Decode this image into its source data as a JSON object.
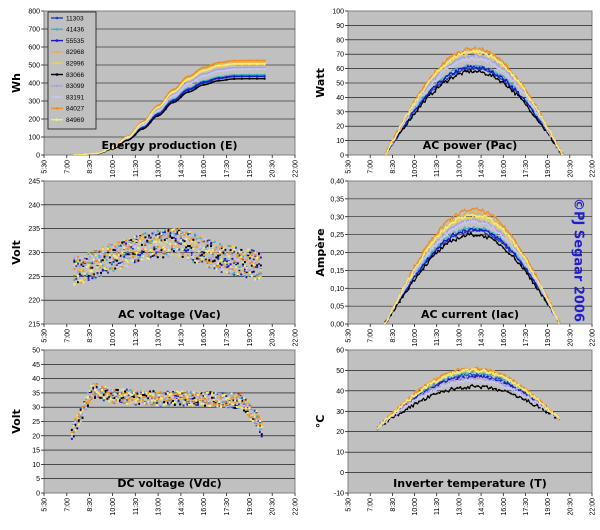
{
  "watermark": "©PJ Segaar 2006",
  "legend": {
    "ids": [
      "11303",
      "41436",
      "55535",
      "82968",
      "82996",
      "83066",
      "83099",
      "83191",
      "84027",
      "84969"
    ],
    "colors": [
      "#1f3fb4",
      "#3cb0c8",
      "#1818c8",
      "#e8b040",
      "#f0d050",
      "#000000",
      "#a8a0e0",
      "#c8c8f0",
      "#f08c20",
      "#f0f080"
    ]
  },
  "chart_data": [
    {
      "type": "line",
      "title": "Energy production (E)",
      "ylabel": "Wh",
      "ylim": [
        0,
        800
      ],
      "yticks": [
        "0",
        "100",
        "200",
        "300",
        "400",
        "500",
        "600",
        "700",
        "800"
      ],
      "xticks": [
        "5:30",
        "7:00",
        "8:30",
        "10:00",
        "11:30",
        "13:00",
        "14:30",
        "16:00",
        "17:30",
        "19:00",
        "20:30",
        "22:00"
      ],
      "x_range": [
        "5:30",
        "22:00"
      ],
      "grid": true,
      "legend_position": "top-left",
      "series": [
        {
          "name": "11303",
          "x": [
            "7:30",
            "9:00",
            "10:00",
            "11:00",
            "12:00",
            "13:00",
            "14:00",
            "15:00",
            "16:00",
            "17:00",
            "18:00",
            "19:00",
            "20:00"
          ],
          "y": [
            0,
            8,
            35,
            85,
            150,
            225,
            300,
            360,
            400,
            425,
            435,
            436,
            436
          ]
        },
        {
          "name": "41436",
          "x": [
            "7:30",
            "9:00",
            "10:00",
            "11:00",
            "12:00",
            "13:00",
            "14:00",
            "15:00",
            "16:00",
            "17:00",
            "18:00",
            "19:00",
            "20:00"
          ],
          "y": [
            0,
            8,
            36,
            88,
            155,
            232,
            310,
            372,
            412,
            435,
            445,
            446,
            446
          ]
        },
        {
          "name": "55535",
          "x": [
            "7:30",
            "9:00",
            "10:00",
            "11:00",
            "12:00",
            "13:00",
            "14:00",
            "15:00",
            "16:00",
            "17:00",
            "18:00",
            "19:00",
            "20:00"
          ],
          "y": [
            0,
            8,
            36,
            86,
            152,
            228,
            304,
            365,
            405,
            428,
            438,
            438,
            438
          ]
        },
        {
          "name": "82968",
          "x": [
            "7:30",
            "9:00",
            "10:00",
            "11:00",
            "12:00",
            "13:00",
            "14:00",
            "15:00",
            "16:00",
            "17:00",
            "18:00",
            "19:00",
            "20:00"
          ],
          "y": [
            0,
            9,
            40,
            100,
            180,
            268,
            355,
            428,
            476,
            503,
            513,
            514,
            514
          ]
        },
        {
          "name": "82996",
          "x": [
            "7:30",
            "9:00",
            "10:00",
            "11:00",
            "12:00",
            "13:00",
            "14:00",
            "15:00",
            "16:00",
            "17:00",
            "18:00",
            "19:00",
            "20:00"
          ],
          "y": [
            0,
            9,
            39,
            98,
            176,
            262,
            348,
            418,
            466,
            492,
            502,
            503,
            503
          ]
        },
        {
          "name": "83066",
          "x": [
            "7:30",
            "9:00",
            "10:00",
            "11:00",
            "12:00",
            "13:00",
            "14:00",
            "15:00",
            "16:00",
            "17:00",
            "18:00",
            "19:00",
            "20:00"
          ],
          "y": [
            0,
            7,
            33,
            82,
            145,
            218,
            292,
            350,
            390,
            413,
            423,
            424,
            424
          ]
        },
        {
          "name": "83099",
          "x": [
            "7:30",
            "9:00",
            "10:00",
            "11:00",
            "12:00",
            "13:00",
            "14:00",
            "15:00",
            "16:00",
            "17:00",
            "18:00",
            "19:00",
            "20:00"
          ],
          "y": [
            0,
            9,
            38,
            95,
            170,
            253,
            336,
            404,
            450,
            475,
            485,
            486,
            486
          ]
        },
        {
          "name": "83191",
          "x": [
            "7:30",
            "9:00",
            "10:00",
            "11:00",
            "12:00",
            "13:00",
            "14:00",
            "15:00",
            "16:00",
            "17:00",
            "18:00",
            "19:00",
            "20:00"
          ],
          "y": [
            0,
            9,
            38,
            93,
            166,
            248,
            330,
            396,
            441,
            466,
            476,
            477,
            477
          ]
        },
        {
          "name": "84027",
          "x": [
            "7:30",
            "9:00",
            "10:00",
            "11:00",
            "12:00",
            "13:00",
            "14:00",
            "15:00",
            "16:00",
            "17:00",
            "18:00",
            "19:00",
            "20:00"
          ],
          "y": [
            0,
            10,
            41,
            103,
            185,
            275,
            364,
            438,
            487,
            514,
            524,
            525,
            525
          ]
        },
        {
          "name": "84969",
          "x": [
            "7:30",
            "9:00",
            "10:00",
            "11:00",
            "12:00",
            "13:00",
            "14:00",
            "15:00",
            "16:00",
            "17:00",
            "18:00",
            "19:00",
            "20:00"
          ],
          "y": [
            0,
            9,
            40,
            99,
            178,
            265,
            351,
            422,
            470,
            497,
            507,
            508,
            508
          ]
        }
      ]
    },
    {
      "type": "line",
      "title": "AC power (Pac)",
      "ylabel": "Watt",
      "ylim": [
        0,
        100
      ],
      "yticks": [
        "0",
        "10",
        "20",
        "30",
        "40",
        "50",
        "60",
        "70",
        "80",
        "90",
        "100"
      ],
      "xticks": [
        "5:30",
        "7:00",
        "8:30",
        "10:00",
        "11:30",
        "13:00",
        "14:30",
        "16:00",
        "17:30",
        "19:00",
        "20:30",
        "22:00"
      ],
      "x_range": [
        "5:30",
        "22:00"
      ],
      "grid": true,
      "series_shape": "bell",
      "x_start": "8:00",
      "x_end": "20:00",
      "peak_time": "14:00",
      "peak_values": [
        60,
        62,
        61,
        73,
        71,
        58,
        69,
        67,
        74,
        72
      ]
    },
    {
      "type": "scatter",
      "title": "AC voltage (Vac)",
      "ylabel": "Volt",
      "ylim": [
        215,
        245
      ],
      "yticks": [
        "215",
        "220",
        "225",
        "230",
        "235",
        "240",
        "245"
      ],
      "xticks": [
        "5:30",
        "7:00",
        "8:30",
        "10:00",
        "11:30",
        "13:00",
        "14:30",
        "16:00",
        "17:30",
        "19:00",
        "20:30",
        "22:00"
      ],
      "x_range": [
        "5:30",
        "22:00"
      ],
      "grid": true,
      "x_start": "7:30",
      "x_end": "19:50",
      "profile": {
        "x": [
          "7:30",
          "10:00",
          "13:00",
          "14:30",
          "17:00",
          "19:50"
        ],
        "y": [
          226,
          229,
          232,
          232,
          229,
          227
        ]
      },
      "spread": 6
    },
    {
      "type": "line",
      "title": "AC current (Iac)",
      "ylabel": "Ampère",
      "ylim": [
        0,
        0.4
      ],
      "yticks": [
        "0,00",
        "0,05",
        "0,10",
        "0,15",
        "0,20",
        "0,25",
        "0,30",
        "0,35",
        "0,40"
      ],
      "xticks": [
        "5:30",
        "7:00",
        "8:30",
        "10:00",
        "11:30",
        "13:00",
        "14:30",
        "16:00",
        "17:30",
        "19:00",
        "20:30",
        "22:00"
      ],
      "x_range": [
        "5:30",
        "22:00"
      ],
      "grid": true,
      "series_shape": "bell",
      "x_start": "8:00",
      "x_end": "19:50",
      "peak_time": "14:00",
      "peak_values": [
        0.26,
        0.27,
        0.265,
        0.31,
        0.3,
        0.25,
        0.29,
        0.285,
        0.32,
        0.305
      ]
    },
    {
      "type": "scatter",
      "title": "DC voltage (Vdc)",
      "ylabel": "Volt",
      "ylim": [
        0,
        50
      ],
      "yticks": [
        "0",
        "5",
        "10",
        "15",
        "20",
        "25",
        "30",
        "35",
        "40",
        "45",
        "50"
      ],
      "xticks": [
        "5:30",
        "7:00",
        "8:30",
        "10:00",
        "11:30",
        "13:00",
        "14:30",
        "16:00",
        "17:30",
        "19:00",
        "20:30",
        "22:00"
      ],
      "x_range": [
        "5:30",
        "22:00"
      ],
      "grid": true,
      "x_start": "7:20",
      "x_end": "19:50",
      "profile": {
        "x": [
          "7:20",
          "8:00",
          "8:40",
          "10:00",
          "13:00",
          "16:00",
          "18:30",
          "19:30",
          "19:50"
        ],
        "y": [
          21,
          28,
          36,
          34,
          33,
          33,
          32,
          26,
          22
        ]
      },
      "spread": 5
    },
    {
      "type": "line",
      "title": "Inverter temperature (T)",
      "ylabel": "°C",
      "ylim": [
        -10,
        60
      ],
      "yticks": [
        "-10",
        "0",
        "10",
        "20",
        "30",
        "40",
        "50",
        "60"
      ],
      "xticks": [
        "5:30",
        "7:00",
        "8:30",
        "10:00",
        "11:30",
        "13:00",
        "14:30",
        "16:00",
        "17:30",
        "19:00",
        "20:30",
        "22:00"
      ],
      "x_range": [
        "5:30",
        "22:00"
      ],
      "grid": true,
      "series_shape": "bell",
      "x_start": "7:30",
      "x_end": "19:50",
      "peak_time": "14:00",
      "base_value": 22,
      "end_value": 26,
      "peak_values": [
        48,
        49,
        47,
        51,
        50,
        42,
        46,
        45,
        51,
        50
      ]
    }
  ]
}
